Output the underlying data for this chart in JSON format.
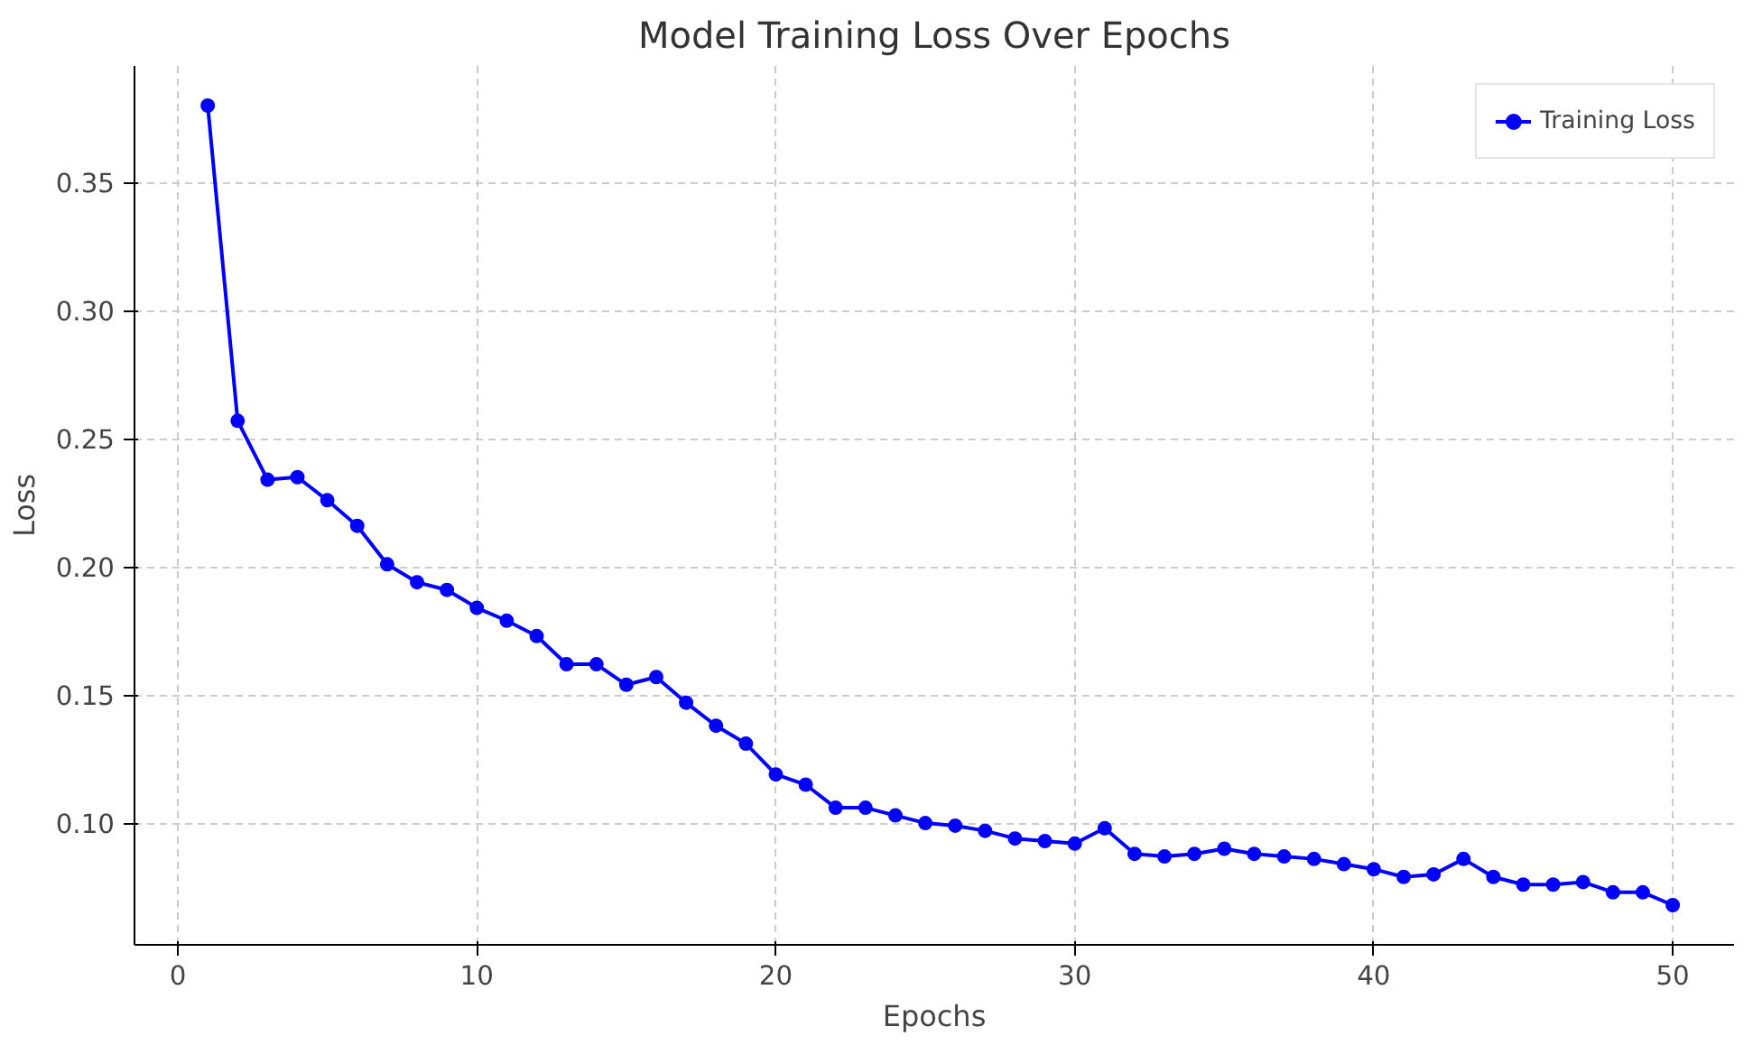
{
  "chart_data": {
    "type": "line",
    "title": "Model Training Loss Over Epochs",
    "xlabel": "Epochs",
    "ylabel": "Loss",
    "x": [
      1,
      2,
      3,
      4,
      5,
      6,
      7,
      8,
      9,
      10,
      11,
      12,
      13,
      14,
      15,
      16,
      17,
      18,
      19,
      20,
      21,
      22,
      23,
      24,
      25,
      26,
      27,
      28,
      29,
      30,
      31,
      32,
      33,
      34,
      35,
      36,
      37,
      38,
      39,
      40,
      41,
      42,
      43,
      44,
      45,
      46,
      47,
      48,
      49,
      50
    ],
    "series": [
      {
        "name": "Training Loss",
        "color": "#0000ff",
        "values": [
          0.38,
          0.257,
          0.234,
          0.235,
          0.226,
          0.216,
          0.201,
          0.194,
          0.191,
          0.184,
          0.179,
          0.173,
          0.162,
          0.162,
          0.154,
          0.157,
          0.147,
          0.138,
          0.131,
          0.119,
          0.115,
          0.106,
          0.106,
          0.103,
          0.1,
          0.099,
          0.097,
          0.094,
          0.093,
          0.092,
          0.098,
          0.088,
          0.087,
          0.088,
          0.09,
          0.088,
          0.087,
          0.086,
          0.084,
          0.082,
          0.079,
          0.08,
          0.086,
          0.079,
          0.076,
          0.076,
          0.077,
          0.073,
          0.073,
          0.068
        ]
      }
    ],
    "xlim": [
      -1.45,
      52.05
    ],
    "ylim": [
      0.0525,
      0.3955
    ],
    "xticks": [
      0,
      10,
      20,
      30,
      40,
      50
    ],
    "yticks": [
      {
        "value": 0.1,
        "label": "0.10"
      },
      {
        "value": 0.15,
        "label": "0.15"
      },
      {
        "value": 0.2,
        "label": "0.20"
      },
      {
        "value": 0.25,
        "label": "0.25"
      },
      {
        "value": 0.3,
        "label": "0.30"
      },
      {
        "value": 0.35,
        "label": "0.35"
      }
    ],
    "grid": true,
    "legend": "top right",
    "marker": "circle",
    "line_style": "solid"
  }
}
